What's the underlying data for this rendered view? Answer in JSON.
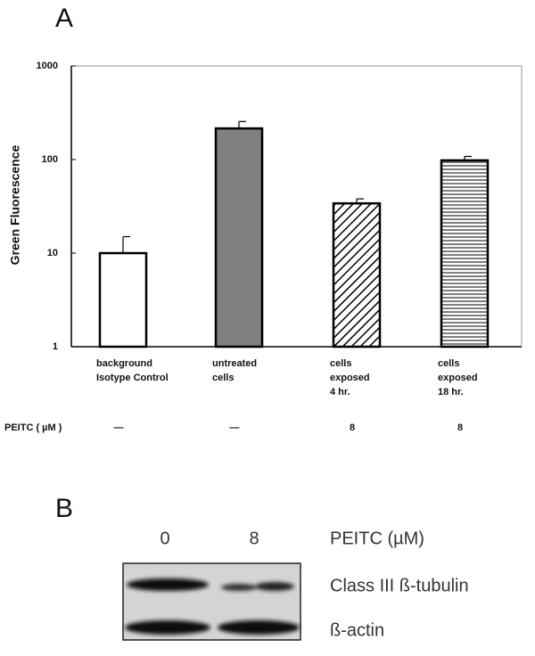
{
  "panel_a_label": "A",
  "chart_data": {
    "type": "bar",
    "y_label": "Green Fluorescence",
    "log_scale": true,
    "categories": [
      [
        "background",
        "Isotype Control"
      ],
      [
        "untreated",
        "cells"
      ],
      [
        "cells",
        "exposed",
        "4 hr."
      ],
      [
        "cells",
        "exposed",
        "18 hr."
      ]
    ],
    "values": [
      10,
      215,
      34,
      98
    ],
    "errors": [
      5,
      40,
      4,
      10
    ],
    "colors": [
      "#ffffff",
      "#808080",
      "#ffffff",
      "#ffffff"
    ],
    "hatches": [
      "none",
      "none",
      "diagonal",
      "horizontal"
    ],
    "ylim": [
      1,
      1000
    ],
    "yticks": [
      1,
      10,
      100,
      1000
    ]
  },
  "treatment": {
    "label": "PEITC ( µM )",
    "values": [
      "—",
      "—",
      "8",
      "8"
    ]
  },
  "panel_b_label": "B",
  "blot": {
    "header": "PEITC (µM)",
    "lanes": [
      "0",
      "8"
    ],
    "rows": [
      "Class III ß-tubulin",
      "ß-actin"
    ]
  }
}
